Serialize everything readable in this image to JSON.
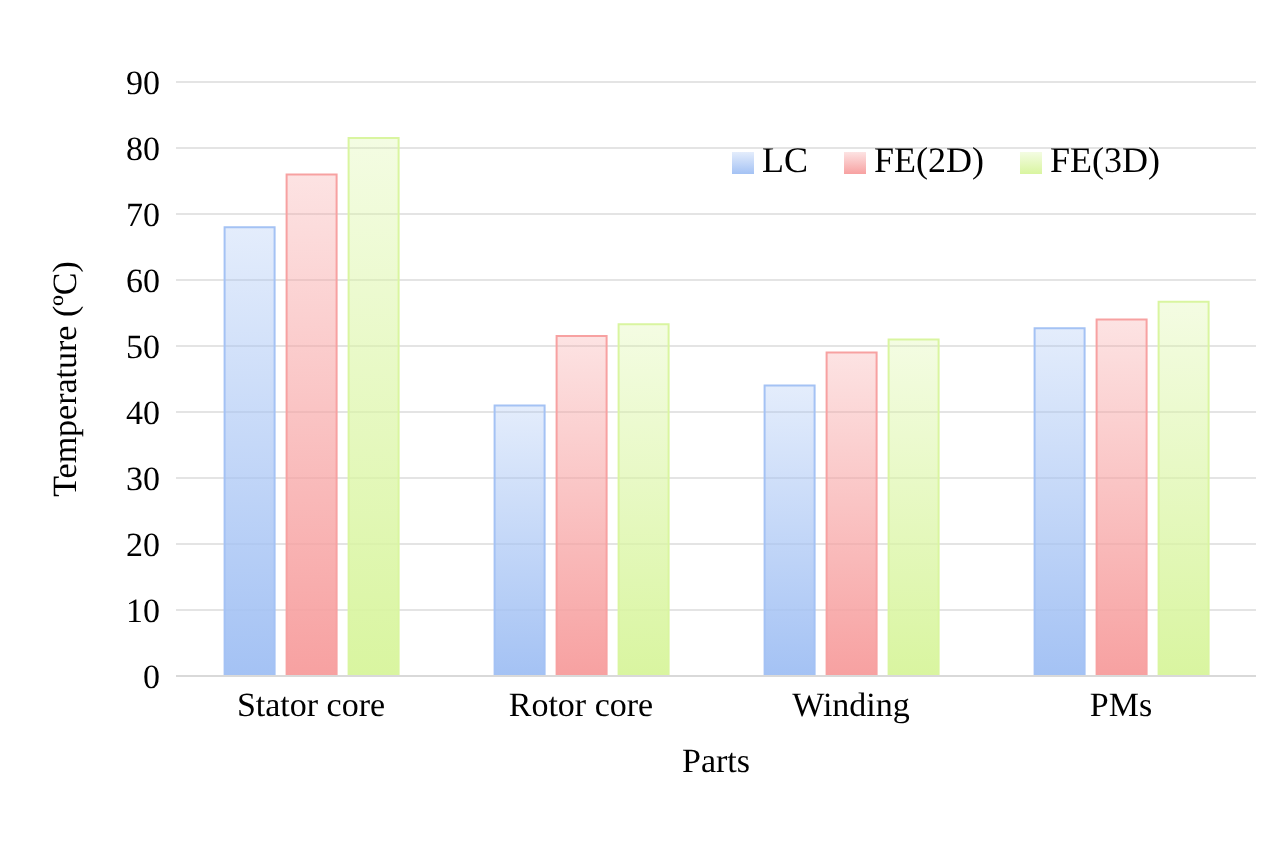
{
  "chart_data": {
    "type": "bar",
    "xlabel": "Parts",
    "ylabel": "Temperature (ºC)",
    "categories": [
      "Stator core",
      "Rotor core",
      "Winding",
      "PMs"
    ],
    "series": [
      {
        "name": "LC",
        "color": "#a4c2f4",
        "values": [
          68,
          41,
          44,
          52.7
        ]
      },
      {
        "name": "FE(2D)",
        "color": "#f7a1a1",
        "values": [
          76,
          51.5,
          49,
          54
        ]
      },
      {
        "name": "FE(3D)",
        "color": "#d9f5a0",
        "values": [
          81.5,
          53.3,
          51,
          56.7
        ]
      }
    ],
    "ylim": [
      0,
      90
    ],
    "yticks": [
      0,
      10,
      20,
      30,
      40,
      50,
      60,
      70,
      80,
      90
    ],
    "grid": "y",
    "legend": "top right"
  }
}
